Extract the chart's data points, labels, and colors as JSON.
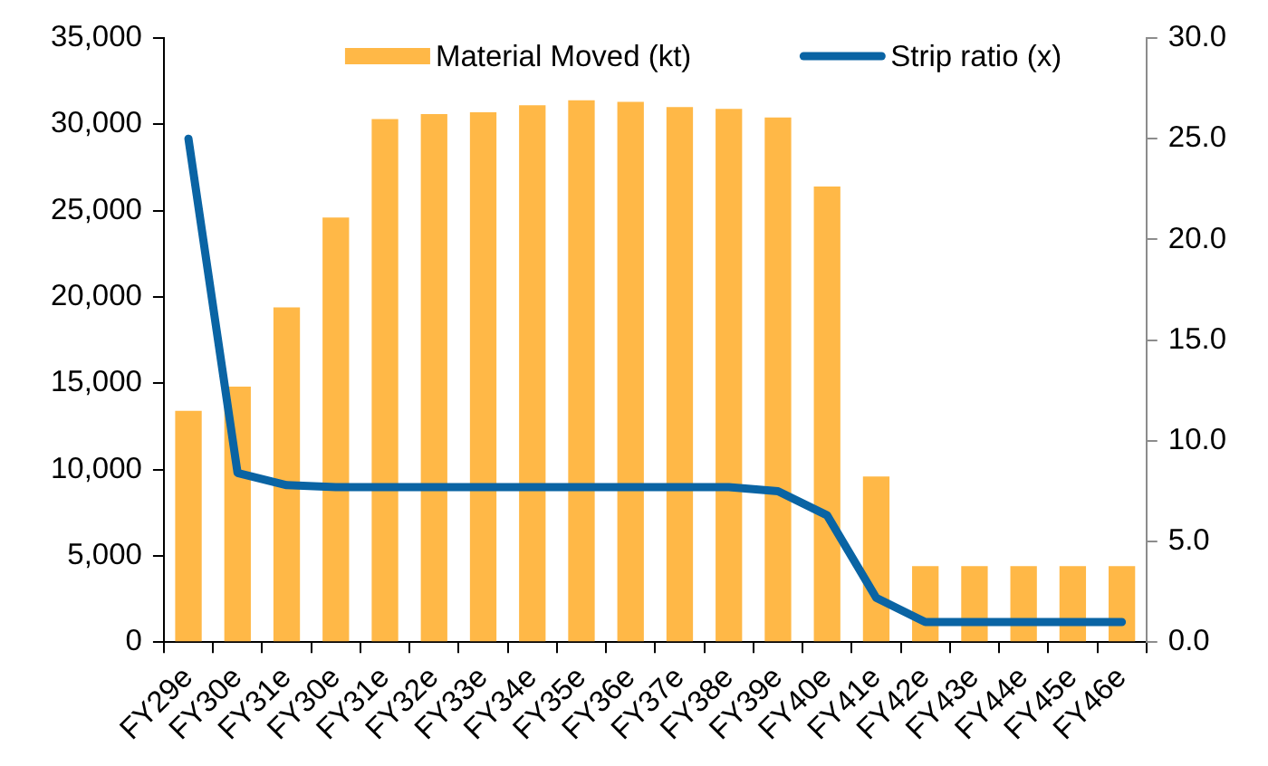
{
  "chart_data": {
    "type": "bar",
    "categories": [
      "FY29e",
      "FY30e",
      "FY31e",
      "FY30e",
      "FY31e",
      "FY32e",
      "FY33e",
      "FY34e",
      "FY35e",
      "FY36e",
      "FY37e",
      "FY38e",
      "FY39e",
      "FY40e",
      "FY41e",
      "FY42e",
      "FY43e",
      "FY44e",
      "FY45e",
      "FY46e"
    ],
    "series": [
      {
        "name": "Material Moved (kt)",
        "color": "#ffb847",
        "values": [
          13400,
          14800,
          19400,
          24600,
          30300,
          30600,
          30700,
          31100,
          31400,
          31300,
          31000,
          30900,
          30400,
          26400,
          9600,
          4400,
          4400,
          4400,
          4400,
          4400
        ]
      },
      {
        "name": "Strip ratio (x)",
        "type": "line",
        "axis": "y2",
        "color": "#0a64a4",
        "values": [
          25.0,
          8.4,
          7.8,
          7.7,
          7.7,
          7.7,
          7.7,
          7.7,
          7.7,
          7.7,
          7.7,
          7.7,
          7.5,
          6.3,
          2.2,
          1.0,
          1.0,
          1.0,
          1.0,
          1.0
        ]
      }
    ],
    "ylim": [
      0,
      35000
    ],
    "yticks": [
      {
        "value": 0,
        "label": "0"
      },
      {
        "value": 5000,
        "label": "5,000"
      },
      {
        "value": 10000,
        "label": "10,000"
      },
      {
        "value": 15000,
        "label": "15,000"
      },
      {
        "value": 20000,
        "label": "20,000"
      },
      {
        "value": 25000,
        "label": "25,000"
      },
      {
        "value": 30000,
        "label": "30,000"
      },
      {
        "value": 35000,
        "label": "35,000"
      }
    ],
    "y2lim": [
      0,
      30
    ],
    "y2ticks": [
      {
        "value": 0,
        "label": "0.0"
      },
      {
        "value": 5,
        "label": "5.0"
      },
      {
        "value": 10,
        "label": "10.0"
      },
      {
        "value": 15,
        "label": "15.0"
      },
      {
        "value": 20,
        "label": "20.0"
      },
      {
        "value": 25,
        "label": "25.0"
      },
      {
        "value": 30,
        "label": "30.0"
      }
    ],
    "legend": "top",
    "grid": false,
    "marker": "none",
    "line_style": "solid"
  }
}
